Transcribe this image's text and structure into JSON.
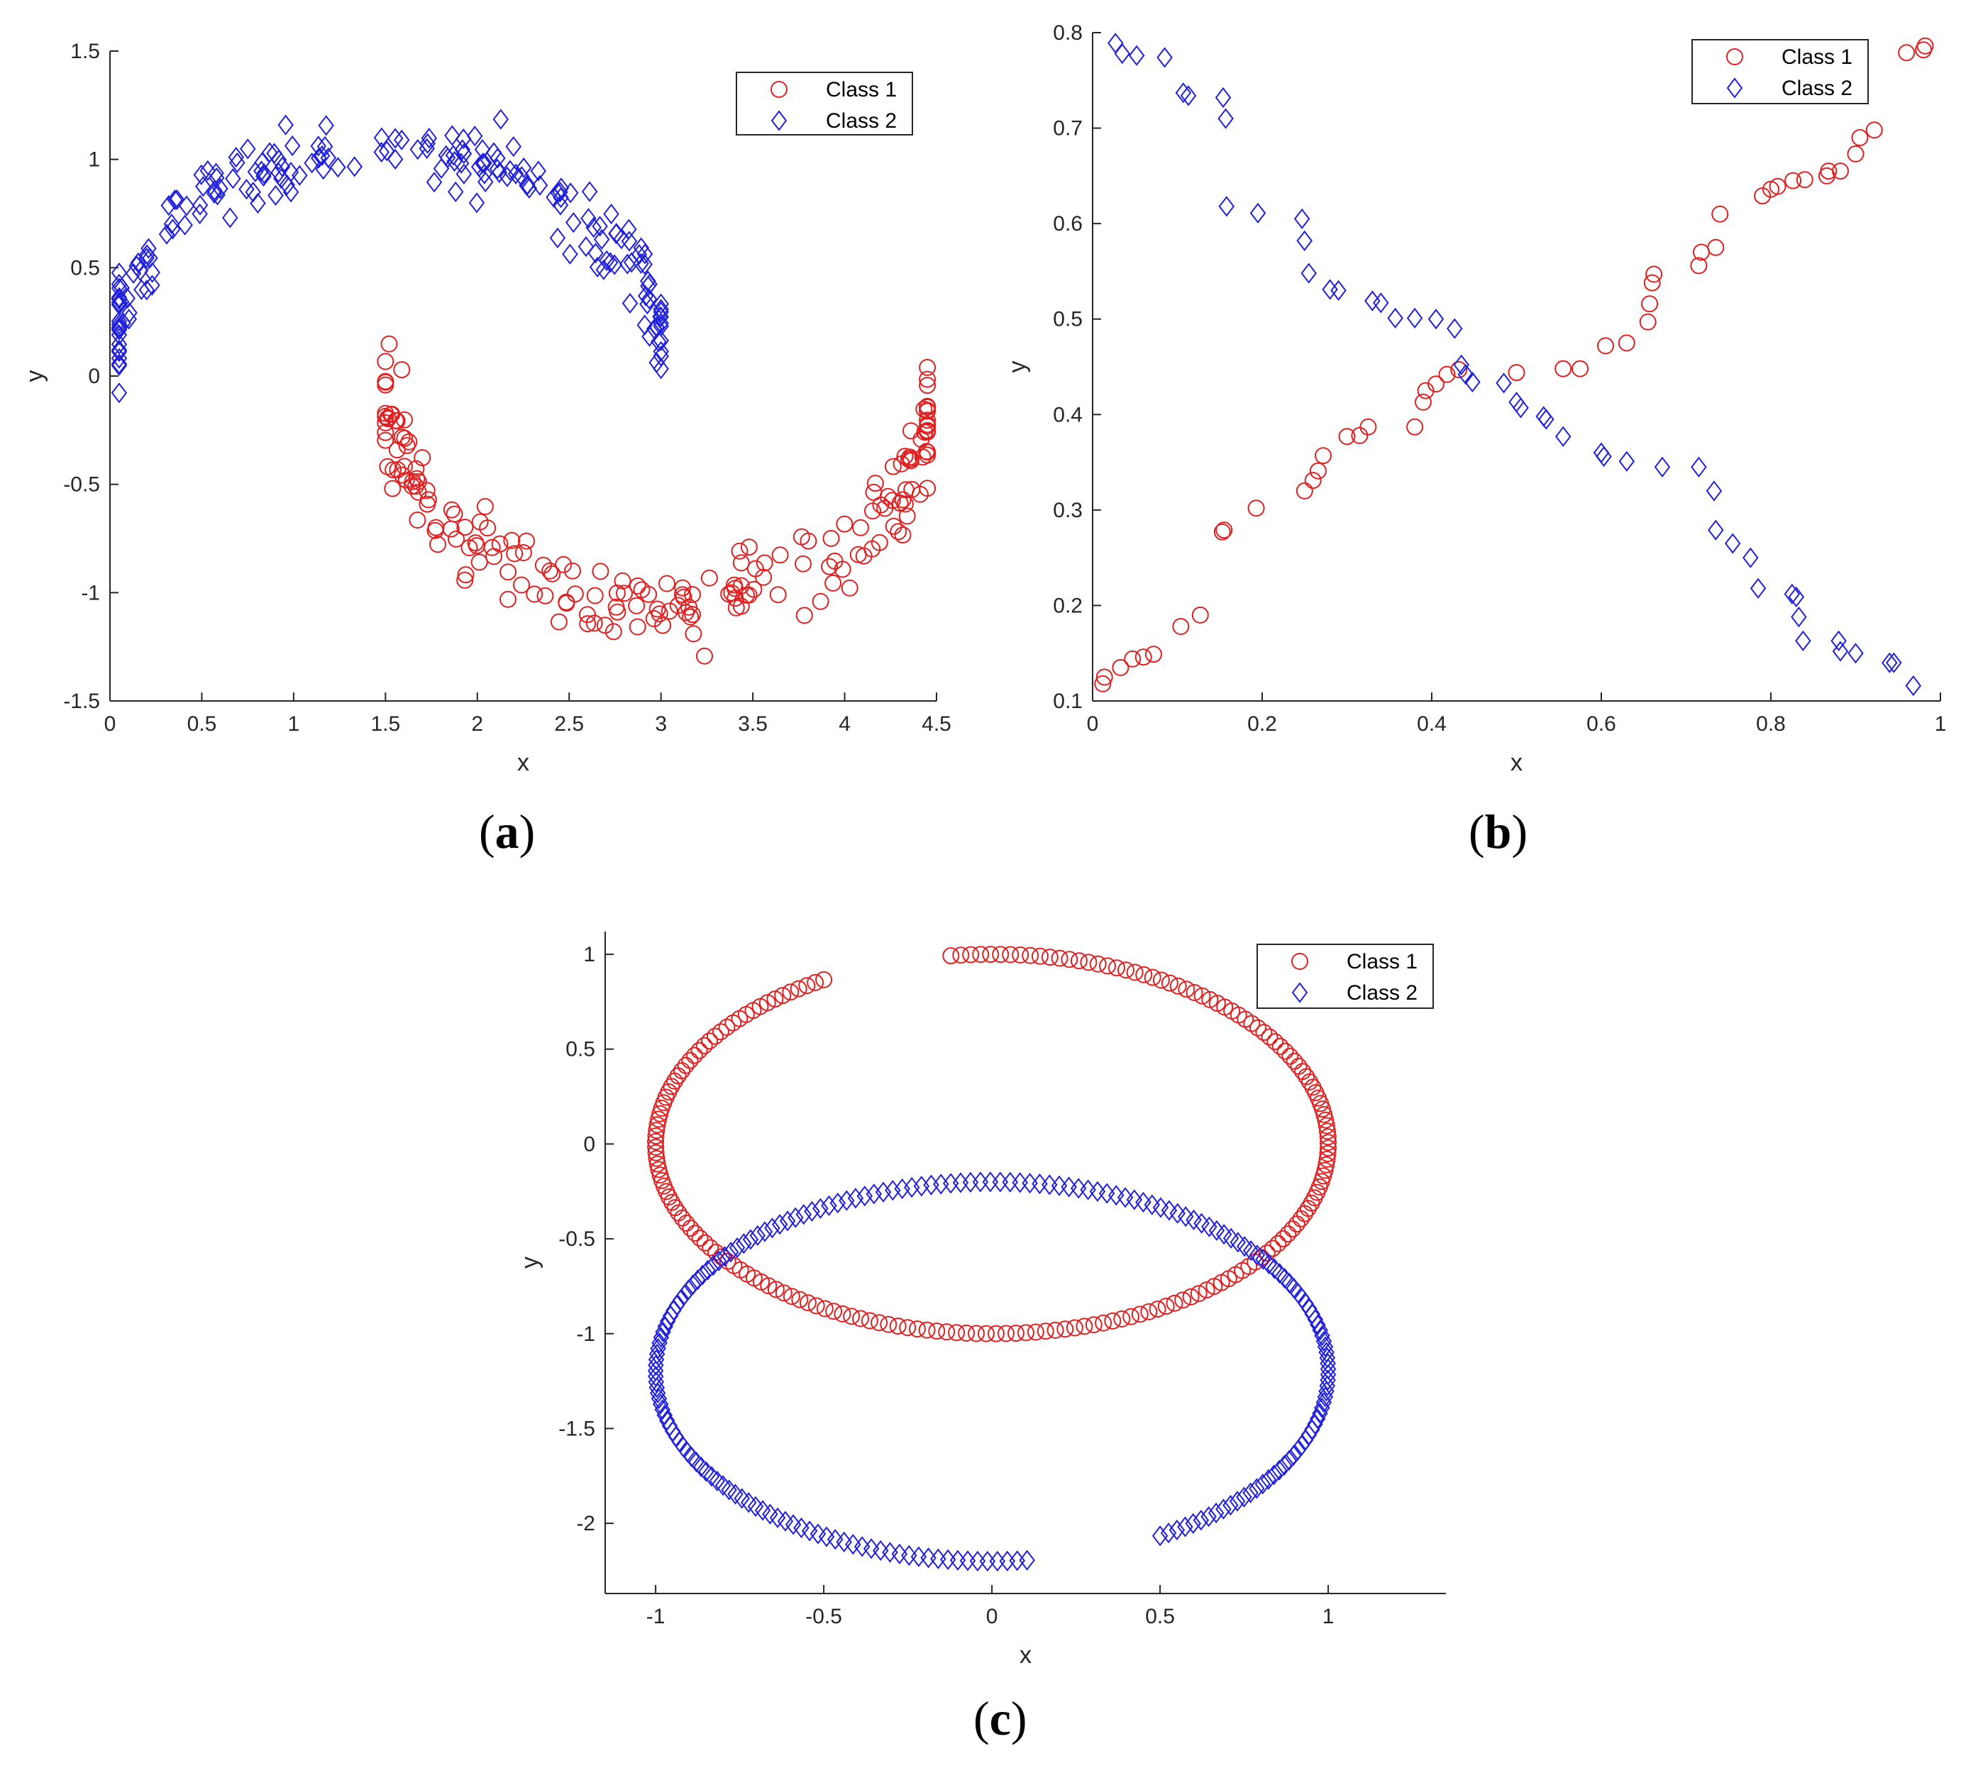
{
  "chart_data": [
    {
      "id": "a",
      "type": "scatter",
      "panel_label": "a",
      "xlabel": "x",
      "ylabel": "y",
      "xlim": [
        0,
        4.5
      ],
      "ylim": [
        -1.5,
        1.5
      ],
      "xticks": [
        0,
        0.5,
        1,
        1.5,
        2,
        2.5,
        3,
        3.5,
        4,
        4.5
      ],
      "xtick_labels": [
        "0",
        "0.5",
        "1",
        "1.5",
        "2",
        "2.5",
        "3",
        "3.5",
        "4",
        "4.5"
      ],
      "yticks": [
        -1.5,
        -1,
        -0.5,
        0,
        0.5,
        1,
        1.5
      ],
      "ytick_labels": [
        "-1.5",
        "-1",
        "-0.5",
        "0",
        "0.5",
        "1",
        "1.5"
      ],
      "legend": "top-right",
      "series": [
        {
          "name": "Class 1",
          "marker": "circle",
          "color": "#e02020",
          "generator": "noisy-lower-half-moon",
          "count": 200,
          "x_range": [
            1.5,
            4.45
          ],
          "center": [
            3.0,
            -0.05
          ],
          "radius": 1.5,
          "noise": 0.09
        },
        {
          "name": "Class 2",
          "marker": "diamond",
          "color": "#2020dd",
          "generator": "noisy-upper-half-moon",
          "count": 200,
          "x_range": [
            0.05,
            3.0
          ],
          "center": [
            1.5,
            0.05
          ],
          "radius": 1.5,
          "noise": 0.09
        }
      ]
    },
    {
      "id": "b",
      "type": "scatter",
      "panel_label": "b",
      "xlabel": "x",
      "ylabel": "y",
      "xlim": [
        0,
        1
      ],
      "ylim": [
        0.1,
        0.8
      ],
      "xticks": [
        0,
        0.2,
        0.4,
        0.6,
        0.8,
        1
      ],
      "xtick_labels": [
        "0",
        "0.2",
        "0.4",
        "0.6",
        "0.8",
        "1"
      ],
      "yticks": [
        0.1,
        0.2,
        0.3,
        0.4,
        0.5,
        0.6,
        0.7,
        0.8
      ],
      "ytick_labels": [
        "0.1",
        "0.2",
        "0.3",
        "0.4",
        "0.5",
        "0.6",
        "0.7",
        "0.8"
      ],
      "legend": "top-right",
      "series": [
        {
          "name": "Class 1",
          "marker": "circle",
          "color": "#e02020",
          "points": [
            [
              0.012,
              0.118
            ],
            [
              0.014,
              0.125
            ],
            [
              0.033,
              0.135
            ],
            [
              0.047,
              0.144
            ],
            [
              0.06,
              0.146
            ],
            [
              0.072,
              0.149
            ],
            [
              0.104,
              0.178
            ],
            [
              0.127,
              0.19
            ],
            [
              0.153,
              0.277
            ],
            [
              0.155,
              0.279
            ],
            [
              0.193,
              0.302
            ],
            [
              0.25,
              0.32
            ],
            [
              0.26,
              0.331
            ],
            [
              0.266,
              0.341
            ],
            [
              0.272,
              0.357
            ],
            [
              0.3,
              0.377
            ],
            [
              0.315,
              0.378
            ],
            [
              0.325,
              0.387
            ],
            [
              0.38,
              0.387
            ],
            [
              0.39,
              0.413
            ],
            [
              0.393,
              0.425
            ],
            [
              0.405,
              0.432
            ],
            [
              0.418,
              0.442
            ],
            [
              0.432,
              0.447
            ],
            [
              0.5,
              0.444
            ],
            [
              0.555,
              0.448
            ],
            [
              0.575,
              0.448
            ],
            [
              0.605,
              0.472
            ],
            [
              0.63,
              0.475
            ],
            [
              0.655,
              0.497
            ],
            [
              0.657,
              0.516
            ],
            [
              0.66,
              0.538
            ],
            [
              0.662,
              0.547
            ],
            [
              0.715,
              0.556
            ],
            [
              0.718,
              0.57
            ],
            [
              0.735,
              0.575
            ],
            [
              0.74,
              0.61
            ],
            [
              0.79,
              0.629
            ],
            [
              0.8,
              0.636
            ],
            [
              0.808,
              0.639
            ],
            [
              0.826,
              0.645
            ],
            [
              0.84,
              0.646
            ],
            [
              0.866,
              0.65
            ],
            [
              0.868,
              0.655
            ],
            [
              0.882,
              0.655
            ],
            [
              0.9,
              0.673
            ],
            [
              0.905,
              0.69
            ],
            [
              0.922,
              0.698
            ],
            [
              0.96,
              0.779
            ],
            [
              0.98,
              0.782
            ],
            [
              0.982,
              0.786
            ]
          ]
        },
        {
          "name": "Class 2",
          "marker": "diamond",
          "color": "#2020dd",
          "points": [
            [
              0.027,
              0.789
            ],
            [
              0.035,
              0.778
            ],
            [
              0.052,
              0.776
            ],
            [
              0.085,
              0.774
            ],
            [
              0.107,
              0.737
            ],
            [
              0.113,
              0.734
            ],
            [
              0.154,
              0.732
            ],
            [
              0.157,
              0.71
            ],
            [
              0.158,
              0.618
            ],
            [
              0.195,
              0.611
            ],
            [
              0.247,
              0.605
            ],
            [
              0.25,
              0.582
            ],
            [
              0.255,
              0.548
            ],
            [
              0.28,
              0.531
            ],
            [
              0.29,
              0.53
            ],
            [
              0.33,
              0.519
            ],
            [
              0.34,
              0.517
            ],
            [
              0.357,
              0.501
            ],
            [
              0.38,
              0.501
            ],
            [
              0.405,
              0.5
            ],
            [
              0.427,
              0.49
            ],
            [
              0.435,
              0.452
            ],
            [
              0.44,
              0.442
            ],
            [
              0.448,
              0.434
            ],
            [
              0.485,
              0.433
            ],
            [
              0.5,
              0.413
            ],
            [
              0.505,
              0.407
            ],
            [
              0.532,
              0.398
            ],
            [
              0.535,
              0.395
            ],
            [
              0.555,
              0.377
            ],
            [
              0.6,
              0.36
            ],
            [
              0.603,
              0.356
            ],
            [
              0.63,
              0.351
            ],
            [
              0.672,
              0.345
            ],
            [
              0.715,
              0.345
            ],
            [
              0.733,
              0.32
            ],
            [
              0.735,
              0.279
            ],
            [
              0.755,
              0.265
            ],
            [
              0.776,
              0.25
            ],
            [
              0.785,
              0.218
            ],
            [
              0.825,
              0.212
            ],
            [
              0.83,
              0.209
            ],
            [
              0.833,
              0.188
            ],
            [
              0.838,
              0.163
            ],
            [
              0.88,
              0.163
            ],
            [
              0.882,
              0.152
            ],
            [
              0.9,
              0.15
            ],
            [
              0.94,
              0.14
            ],
            [
              0.945,
              0.14
            ],
            [
              0.968,
              0.116
            ]
          ]
        }
      ]
    },
    {
      "id": "c",
      "type": "scatter",
      "panel_label": "c",
      "xlabel": "x",
      "ylabel": "y",
      "xlim": [
        -1.15,
        1.35
      ],
      "ylim": [
        -2.37,
        1.12
      ],
      "xticks": [
        -1,
        -0.5,
        0,
        0.5,
        1
      ],
      "xtick_labels": [
        "-1",
        "-0.5",
        "0",
        "0.5",
        "1"
      ],
      "yticks": [
        -2,
        -1.5,
        -1,
        -0.5,
        0,
        0.5,
        1
      ],
      "ytick_labels": [
        "-2",
        "-1.5",
        "-1",
        "-0.5",
        "0",
        "0.5",
        "1"
      ],
      "legend": "top-right",
      "series": [
        {
          "name": "Class 1",
          "marker": "circle",
          "color": "#e02020",
          "generator": "unit-arc",
          "count": 200,
          "center": [
            0,
            0
          ],
          "radius": 1,
          "angle_start_deg": 97,
          "angle_end_deg": -240
        },
        {
          "name": "Class 2",
          "marker": "diamond",
          "color": "#2020dd",
          "generator": "arc",
          "count": 200,
          "center": [
            0,
            -1.2
          ],
          "radius": 1,
          "angle_start_deg": -84,
          "angle_end_deg": -420
        }
      ]
    }
  ]
}
